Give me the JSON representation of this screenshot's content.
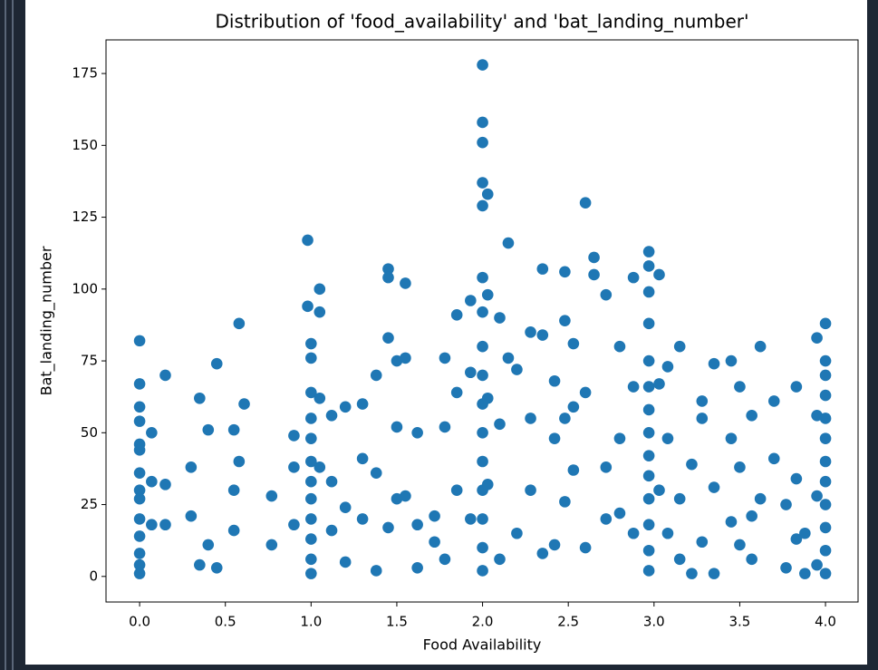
{
  "chart_data": {
    "type": "scatter",
    "title": "Distribution of 'food_availability' and 'bat_landing_number'",
    "x_label": "Food Availability",
    "y_label": "Bat_landing_number",
    "xlim": [
      -0.196,
      4.19
    ],
    "ylim": [
      -8.9,
      186.7
    ],
    "xticks": [
      {
        "value": 0,
        "label": "0.0"
      },
      0.5,
      {
        "value": 1,
        "label": "1.0"
      },
      1.5,
      {
        "value": 2,
        "label": "2.0"
      },
      2.5,
      {
        "value": 3,
        "label": "3.0"
      },
      3.5,
      {
        "value": 4,
        "label": "4.0"
      }
    ],
    "yticks": [
      0,
      25,
      50,
      75,
      100,
      125,
      150,
      175
    ],
    "grid": false,
    "series": [
      {
        "color": "#1f77b4",
        "x": [
          0,
          0,
          0,
          0,
          0,
          0,
          0,
          0,
          0,
          0,
          0,
          0,
          0,
          0,
          0.07,
          0.07,
          0.07,
          0.15,
          0.15,
          0.15,
          0.3,
          0.3,
          0.35,
          0.35,
          0.4,
          0.4,
          0.45,
          0.45,
          0.55,
          0.55,
          0.55,
          0.58,
          0.58,
          0.61,
          0.77,
          0.77,
          0.9,
          0.9,
          0.9,
          0.98,
          0.98,
          1,
          1,
          1,
          1,
          1,
          1,
          1,
          1,
          1,
          1,
          1,
          1,
          1.05,
          1.05,
          1.05,
          1.05,
          1.12,
          1.12,
          1.12,
          1.2,
          1.2,
          1.2,
          1.3,
          1.3,
          1.3,
          1.38,
          1.38,
          1.38,
          1.45,
          1.45,
          1.45,
          1.45,
          1.5,
          1.5,
          1.5,
          1.55,
          1.55,
          1.55,
          1.62,
          1.62,
          1.62,
          1.72,
          1.72,
          1.78,
          1.78,
          1.78,
          1.85,
          1.85,
          1.85,
          1.93,
          1.93,
          1.93,
          2,
          2,
          2,
          2,
          2,
          2,
          2,
          2,
          2,
          2,
          2,
          2,
          2,
          2,
          2,
          2,
          2.03,
          2.03,
          2.03,
          2.03,
          2.1,
          2.1,
          2.1,
          2.15,
          2.15,
          2.2,
          2.2,
          2.28,
          2.28,
          2.28,
          2.35,
          2.35,
          2.35,
          2.42,
          2.42,
          2.42,
          2.48,
          2.48,
          2.48,
          2.48,
          2.53,
          2.53,
          2.53,
          2.6,
          2.6,
          2.6,
          2.65,
          2.65,
          2.72,
          2.72,
          2.72,
          2.8,
          2.8,
          2.8,
          2.88,
          2.88,
          2.88,
          2.97,
          2.97,
          2.97,
          2.97,
          2.97,
          2.97,
          2.97,
          2.97,
          2.97,
          2.97,
          2.97,
          2.97,
          2.97,
          2.97,
          3.03,
          3.03,
          3.03,
          3.08,
          3.08,
          3.08,
          3.15,
          3.15,
          3.15,
          3.22,
          3.22,
          3.28,
          3.28,
          3.28,
          3.35,
          3.35,
          3.35,
          3.45,
          3.45,
          3.45,
          3.5,
          3.5,
          3.5,
          3.57,
          3.57,
          3.57,
          3.62,
          3.62,
          3.7,
          3.7,
          3.77,
          3.77,
          3.83,
          3.83,
          3.83,
          3.88,
          3.88,
          3.95,
          3.95,
          3.95,
          3.95,
          4,
          4,
          4,
          4,
          4,
          4,
          4,
          4,
          4,
          4,
          4,
          4
        ],
        "values": [
          82,
          67,
          59,
          54,
          46,
          44,
          36,
          30,
          27,
          20,
          14,
          8,
          4,
          1,
          50,
          33,
          18,
          32,
          18,
          70,
          38,
          21,
          62,
          4,
          51,
          11,
          74,
          3,
          51,
          30,
          16,
          88,
          40,
          60,
          11,
          28,
          49,
          38,
          18,
          117,
          94,
          81,
          76,
          64,
          55,
          48,
          40,
          33,
          27,
          20,
          13,
          6,
          1,
          100,
          92,
          62,
          38,
          56,
          33,
          16,
          59,
          24,
          5,
          60,
          41,
          20,
          70,
          36,
          2,
          107,
          104,
          83,
          17,
          75,
          52,
          27,
          102,
          76,
          28,
          50,
          18,
          3,
          21,
          12,
          76,
          52,
          6,
          91,
          64,
          30,
          96,
          71,
          20,
          178,
          158,
          151,
          137,
          129,
          104,
          92,
          80,
          70,
          60,
          50,
          40,
          30,
          20,
          10,
          2,
          133,
          98,
          62,
          32,
          90,
          53,
          6,
          116,
          76,
          72,
          15,
          85,
          55,
          30,
          107,
          84,
          8,
          68,
          48,
          11,
          106,
          89,
          55,
          26,
          81,
          59,
          37,
          130,
          64,
          10,
          111,
          105,
          98,
          38,
          20,
          80,
          48,
          22,
          104,
          66,
          15,
          113,
          108,
          99,
          88,
          75,
          66,
          58,
          50,
          42,
          35,
          27,
          18,
          9,
          2,
          105,
          67,
          30,
          73,
          48,
          15,
          80,
          27,
          6,
          39,
          1,
          61,
          55,
          12,
          74,
          31,
          1,
          75,
          48,
          19,
          66,
          38,
          11,
          56,
          21,
          6,
          80,
          27,
          61,
          41,
          25,
          3,
          66,
          34,
          13,
          15,
          1,
          83,
          56,
          28,
          4,
          88,
          75,
          70,
          63,
          55,
          48,
          40,
          33,
          25,
          17,
          9,
          1
        ]
      }
    ]
  }
}
